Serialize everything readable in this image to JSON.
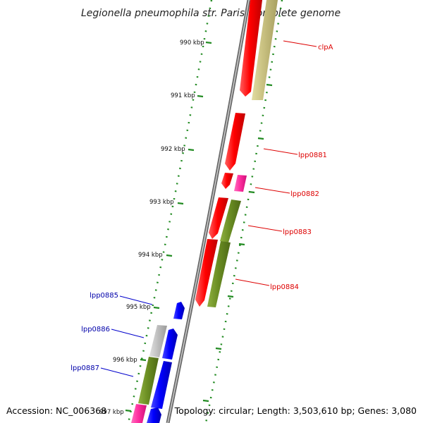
{
  "title": "Legionella pneumophila str. Paris, complete genome",
  "footer": {
    "accession": "Accession: NC_006368",
    "topology": "Topology: circular; Length: 3,503,610 bp; Genes: 3,080"
  },
  "ticks": [
    "990 kbp",
    "991 kbp",
    "992 kbp",
    "993 kbp",
    "994 kbp",
    "995 kbp",
    "996 kbp",
    "997 kbp"
  ],
  "genes": [
    {
      "id": "clpA",
      "label": "clpA",
      "color": "#dd0000"
    },
    {
      "id": "lpp0881",
      "label": "lpp0881",
      "color": "#dd0000"
    },
    {
      "id": "lpp0882",
      "label": "lpp0882",
      "color": "#dd0000"
    },
    {
      "id": "lpp0883",
      "label": "lpp0883",
      "color": "#dd0000"
    },
    {
      "id": "lpp0884",
      "label": "lpp0884",
      "color": "#dd0000"
    },
    {
      "id": "lpp0885",
      "label": "lpp0885",
      "color": "#0000aa"
    },
    {
      "id": "lpp0886",
      "label": "lpp0886",
      "color": "#0000aa"
    },
    {
      "id": "lpp0887",
      "label": "lpp0887",
      "color": "#0000aa"
    }
  ],
  "colors": {
    "forward_cds": "#ff0000",
    "reverse_cds": "#0000ff",
    "rna": "#ff33aa",
    "olive_feature": "#6b8e23",
    "tan_feature": "#c8c080",
    "grey_feature": "#c0c0c0",
    "backbone": "#888888",
    "tick": "#228b22"
  }
}
